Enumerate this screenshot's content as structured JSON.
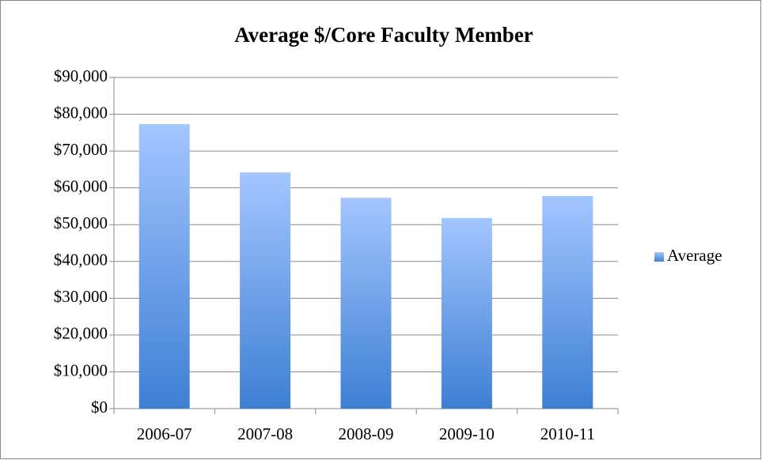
{
  "chart_data": {
    "type": "bar",
    "title": "Average $/Core Faculty Member",
    "categories": [
      "2006-07",
      "2007-08",
      "2008-09",
      "2009-10",
      "2010-11"
    ],
    "series": [
      {
        "name": "Average",
        "color": "#4a86d8",
        "values": [
          77300,
          64200,
          57300,
          51800,
          57800
        ]
      }
    ],
    "ylim": [
      0,
      90000
    ],
    "yticks": [
      {
        "value": 0,
        "label": "$0"
      },
      {
        "value": 10000,
        "label": "$10,000"
      },
      {
        "value": 20000,
        "label": "$20,000"
      },
      {
        "value": 30000,
        "label": "$30,000"
      },
      {
        "value": 40000,
        "label": "$40,000"
      },
      {
        "value": 50000,
        "label": "$50,000"
      },
      {
        "value": 60000,
        "label": "$60,000"
      },
      {
        "value": 70000,
        "label": "$70,000"
      },
      {
        "value": 80000,
        "label": "$80,000"
      },
      {
        "value": 90000,
        "label": "$90,000"
      }
    ],
    "grid": true,
    "legend": "right"
  }
}
